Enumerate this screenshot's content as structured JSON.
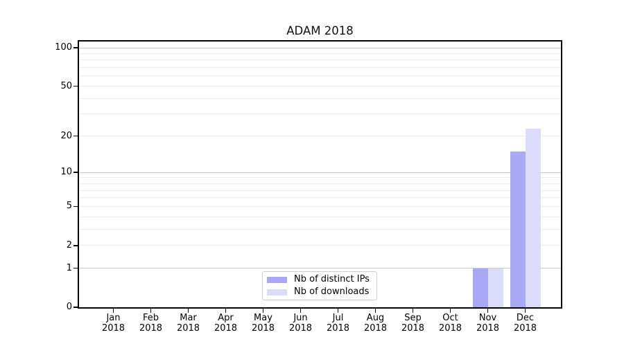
{
  "title": "ADAM 2018",
  "chart_data": {
    "type": "bar",
    "title": "ADAM 2018",
    "categories": [
      "Jan",
      "Feb",
      "Mar",
      "Apr",
      "May",
      "Jun",
      "Jul",
      "Aug",
      "Sep",
      "Oct",
      "Nov",
      "Dec"
    ],
    "category_year": "2018",
    "series": [
      {
        "name": "Nb of distinct IPs",
        "color": "#a8a8f7",
        "values": [
          0,
          0,
          0,
          0,
          0,
          0,
          0,
          0,
          0,
          0,
          1,
          15
        ]
      },
      {
        "name": "Nb of downloads",
        "color": "#dbdcfa",
        "values": [
          0,
          0,
          0,
          0,
          0,
          0,
          0,
          0,
          0,
          0,
          1,
          23
        ]
      }
    ],
    "xlabel": "",
    "ylabel": "",
    "y_axis": {
      "scale": "log10(1+x)",
      "ticks": [
        0,
        1,
        2,
        5,
        10,
        20,
        50,
        100
      ],
      "major_gridlines": [
        1,
        10,
        100
      ],
      "minor_gridlines": [
        2,
        3,
        4,
        5,
        6,
        7,
        8,
        9,
        20,
        30,
        40,
        50,
        60,
        70,
        80,
        90
      ],
      "ylim": [
        0,
        112
      ]
    },
    "grid": true,
    "legend_position": "lower center"
  },
  "colors": {
    "bar_distinct_ips": "#a8a8f7",
    "bar_downloads": "#dbdcfa",
    "grid_minor": "#eeeeee",
    "grid_major": "#c9c9c9",
    "spine": "#000000",
    "background": "#ffffff",
    "legend_border": "#cccccc"
  }
}
